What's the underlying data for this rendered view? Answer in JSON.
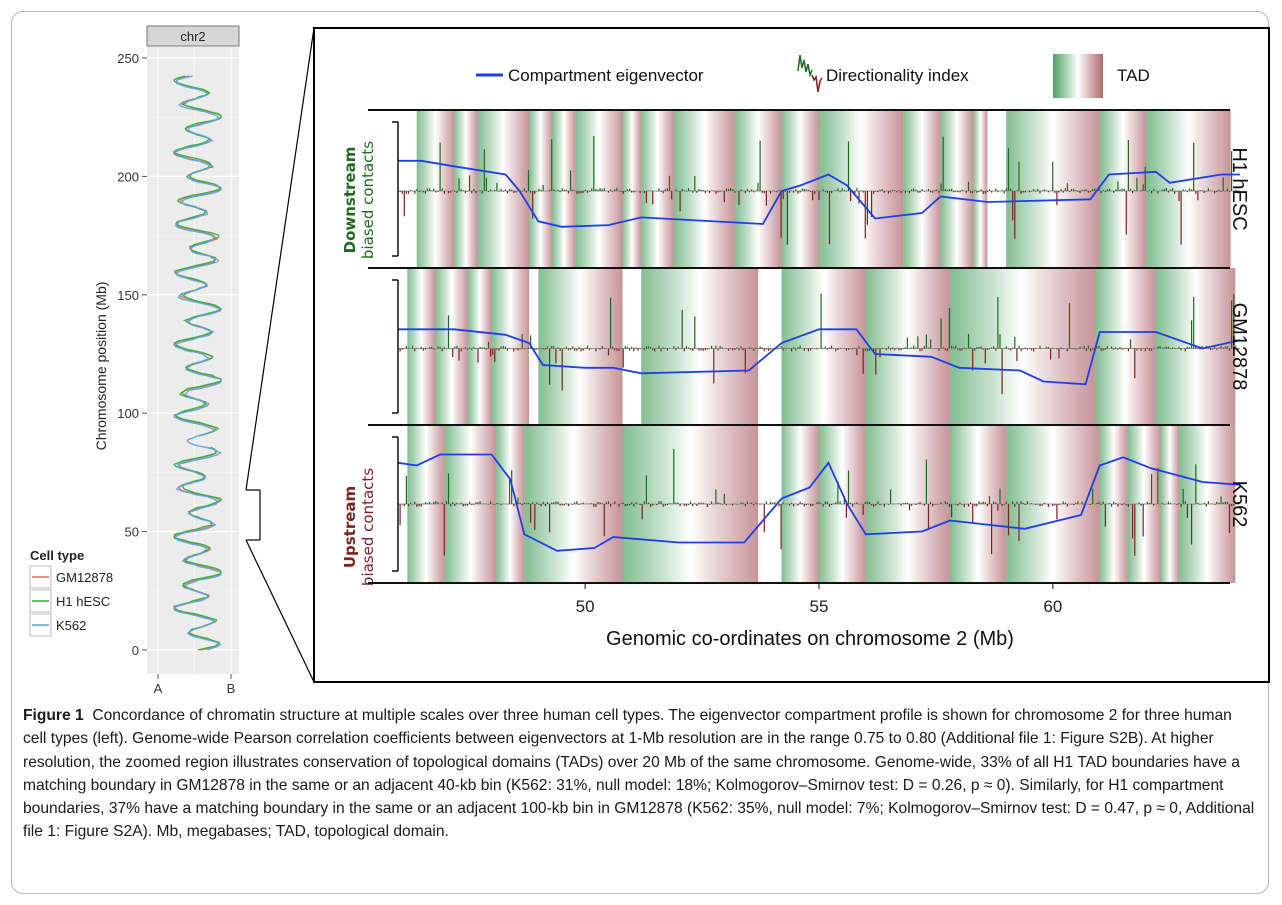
{
  "left_panel": {
    "facet": "chr2",
    "ylabel": "Chromosome position (Mb)",
    "yticks": [
      "0",
      "50",
      "100",
      "150",
      "200",
      "250"
    ],
    "xticks": [
      "A",
      "B"
    ],
    "legend": {
      "title": "Cell type",
      "items": [
        {
          "label": "GM12878",
          "color": "#f06a5e"
        },
        {
          "label": "H1 hESC",
          "color": "#2bb12b"
        },
        {
          "label": "K562",
          "color": "#5aa0e6"
        }
      ]
    }
  },
  "right_panel": {
    "legend": {
      "eigen": "Compartment eigenvector",
      "di": "Directionality index",
      "tad": "TAD"
    },
    "ylabel_top_bold": "Downstream",
    "ylabel_top_rest": "biased contacts",
    "ylabel_bottom_bold": "Upstream",
    "ylabel_bottom_rest": "biased contacts",
    "rows": [
      {
        "label": "H1 hESC"
      },
      {
        "label": "GM12878"
      },
      {
        "label": "K562"
      }
    ],
    "xticks": [
      "50",
      "55",
      "60"
    ],
    "xlabel": "Genomic co-ordinates on chromosome 2 (Mb)",
    "colors": {
      "eigen": "#1f3fe6",
      "di_pos": "#1e6b1e",
      "di_neg": "#7e2222",
      "tad_green": "#3f9a55",
      "tad_red": "#a85a62"
    }
  },
  "chart_data": {
    "type": "line",
    "x_range_mb": [
      46,
      64
    ],
    "x_ticks": [
      50,
      55,
      60
    ],
    "tracks": [
      {
        "cell": "H1 hESC",
        "tads": [
          [
            46.4,
            47.2
          ],
          [
            47.2,
            47.7
          ],
          [
            47.7,
            48.8
          ],
          [
            48.8,
            49.3
          ],
          [
            49.3,
            49.8
          ],
          [
            49.8,
            50.8
          ],
          [
            50.8,
            51.2
          ],
          [
            51.2,
            51.9
          ],
          [
            51.9,
            53.2
          ],
          [
            53.2,
            54.2
          ],
          [
            54.2,
            55.0
          ],
          [
            55.0,
            56.8
          ],
          [
            56.8,
            57.6
          ],
          [
            57.6,
            58.3
          ],
          [
            58.3,
            58.6
          ],
          [
            59.0,
            61.0
          ],
          [
            61.0,
            62.0
          ],
          [
            62.0,
            63.8
          ]
        ],
        "eigen": [
          [
            46,
            0.55
          ],
          [
            46.5,
            0.55
          ],
          [
            47.2,
            0.45
          ],
          [
            48.3,
            0.3
          ],
          [
            48.6,
            0.0
          ],
          [
            49.0,
            -0.55
          ],
          [
            49.5,
            -0.65
          ],
          [
            50.5,
            -0.62
          ],
          [
            51.2,
            -0.48
          ],
          [
            53.8,
            -0.6
          ],
          [
            54.2,
            0.0
          ],
          [
            54.6,
            0.1
          ],
          [
            55.2,
            0.3
          ],
          [
            55.6,
            0.1
          ],
          [
            56.2,
            -0.5
          ],
          [
            57.2,
            -0.4
          ],
          [
            57.6,
            -0.1
          ],
          [
            58.6,
            -0.2
          ],
          [
            60.8,
            -0.15
          ],
          [
            61.2,
            0.3
          ],
          [
            62.2,
            0.35
          ],
          [
            62.5,
            0.15
          ],
          [
            63.6,
            0.3
          ],
          [
            64,
            0.3
          ]
        ]
      },
      {
        "cell": "GM12878",
        "tads": [
          [
            46.2,
            46.8
          ],
          [
            46.8,
            47.5
          ],
          [
            47.5,
            48.0
          ],
          [
            48.0,
            48.8
          ],
          [
            49.0,
            50.8
          ],
          [
            51.2,
            53.7
          ],
          [
            54.2,
            56.0
          ],
          [
            56.0,
            57.8
          ],
          [
            57.8,
            60.9
          ],
          [
            60.9,
            62.2
          ],
          [
            62.2,
            63.9
          ]
        ],
        "eigen": [
          [
            46,
            0.35
          ],
          [
            47.2,
            0.35
          ],
          [
            48.3,
            0.25
          ],
          [
            48.8,
            0.1
          ],
          [
            49.1,
            -0.3
          ],
          [
            50.0,
            -0.35
          ],
          [
            50.6,
            -0.35
          ],
          [
            51.2,
            -0.45
          ],
          [
            53.5,
            -0.4
          ],
          [
            54.2,
            0.1
          ],
          [
            55.0,
            0.35
          ],
          [
            55.8,
            0.35
          ],
          [
            56.2,
            -0.1
          ],
          [
            57.4,
            -0.15
          ],
          [
            58.0,
            -0.35
          ],
          [
            59.3,
            -0.4
          ],
          [
            59.8,
            -0.6
          ],
          [
            60.7,
            -0.65
          ],
          [
            61.0,
            0.3
          ],
          [
            62.2,
            0.3
          ],
          [
            63.2,
            0.0
          ],
          [
            64,
            0.15
          ]
        ]
      },
      {
        "cell": "K562",
        "tads": [
          [
            46.2,
            47.0
          ],
          [
            47.0,
            48.1
          ],
          [
            48.1,
            48.7
          ],
          [
            48.7,
            50.8
          ],
          [
            50.8,
            53.7
          ],
          [
            54.2,
            55.0
          ],
          [
            55.0,
            56.0
          ],
          [
            56.0,
            57.8
          ],
          [
            57.8,
            59.0
          ],
          [
            59.0,
            61.0
          ],
          [
            61.0,
            61.6
          ],
          [
            61.6,
            62.3
          ],
          [
            62.3,
            62.7
          ],
          [
            62.7,
            63.9
          ]
        ],
        "eigen": [
          [
            46,
            0.75
          ],
          [
            46.4,
            0.7
          ],
          [
            46.9,
            0.9
          ],
          [
            48.0,
            0.9
          ],
          [
            48.4,
            0.45
          ],
          [
            48.7,
            -0.55
          ],
          [
            49.4,
            -0.85
          ],
          [
            50.2,
            -0.8
          ],
          [
            50.6,
            -0.6
          ],
          [
            52.0,
            -0.7
          ],
          [
            53.4,
            -0.7
          ],
          [
            54.2,
            0.1
          ],
          [
            54.8,
            0.3
          ],
          [
            55.2,
            0.75
          ],
          [
            55.6,
            0.0
          ],
          [
            56.0,
            -0.55
          ],
          [
            57.2,
            -0.5
          ],
          [
            57.8,
            -0.3
          ],
          [
            59.4,
            -0.45
          ],
          [
            60.6,
            -0.2
          ],
          [
            61.0,
            0.7
          ],
          [
            61.5,
            0.85
          ],
          [
            62.1,
            0.65
          ],
          [
            63.2,
            0.4
          ],
          [
            64,
            0.35
          ]
        ]
      }
    ],
    "left_profile": {
      "xlabel": "",
      "ylabel": "Chromosome position (Mb)",
      "y_range": [
        0,
        243
      ],
      "x_ticks": [
        "A",
        "B"
      ],
      "series": [
        "GM12878",
        "H1 hESC",
        "K562"
      ]
    }
  },
  "caption": {
    "label": "Figure 1",
    "text": "Concordance of chromatin structure at multiple scales over three human cell types. The eigenvector compartment profile is shown for chromosome 2 for three human cell types (left). Genome-wide Pearson correlation coefficients between eigenvectors at 1-Mb resolution are in the range 0.75 to 0.80 (Additional file 1: Figure S2B). At higher resolution, the zoomed region illustrates conservation of topological domains (TADs) over 20 Mb of the same chromosome. Genome-wide, 33% of all H1 TAD boundaries have a matching boundary in GM12878 in the same or an adjacent 40-kb bin (K562: 31%, null model: 18%; Kolmogorov–Smirnov test: D = 0.26, p ≈ 0). Similarly, for H1 compartment boundaries, 37% have a matching boundary in the same or an adjacent 100-kb bin in GM12878 (K562: 35%, null model: 7%; Kolmogorov–Smirnov test: D = 0.47, p ≈ 0, Additional file 1: Figure S2A). Mb, megabases; TAD, topological domain."
  }
}
